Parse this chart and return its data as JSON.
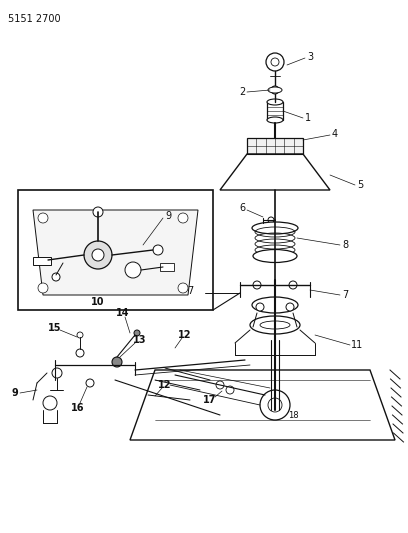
{
  "part_number": "5151 2700",
  "bg": "#ffffff",
  "lc": "#111111",
  "fig_w": 4.08,
  "fig_h": 5.33,
  "dpi": 100
}
